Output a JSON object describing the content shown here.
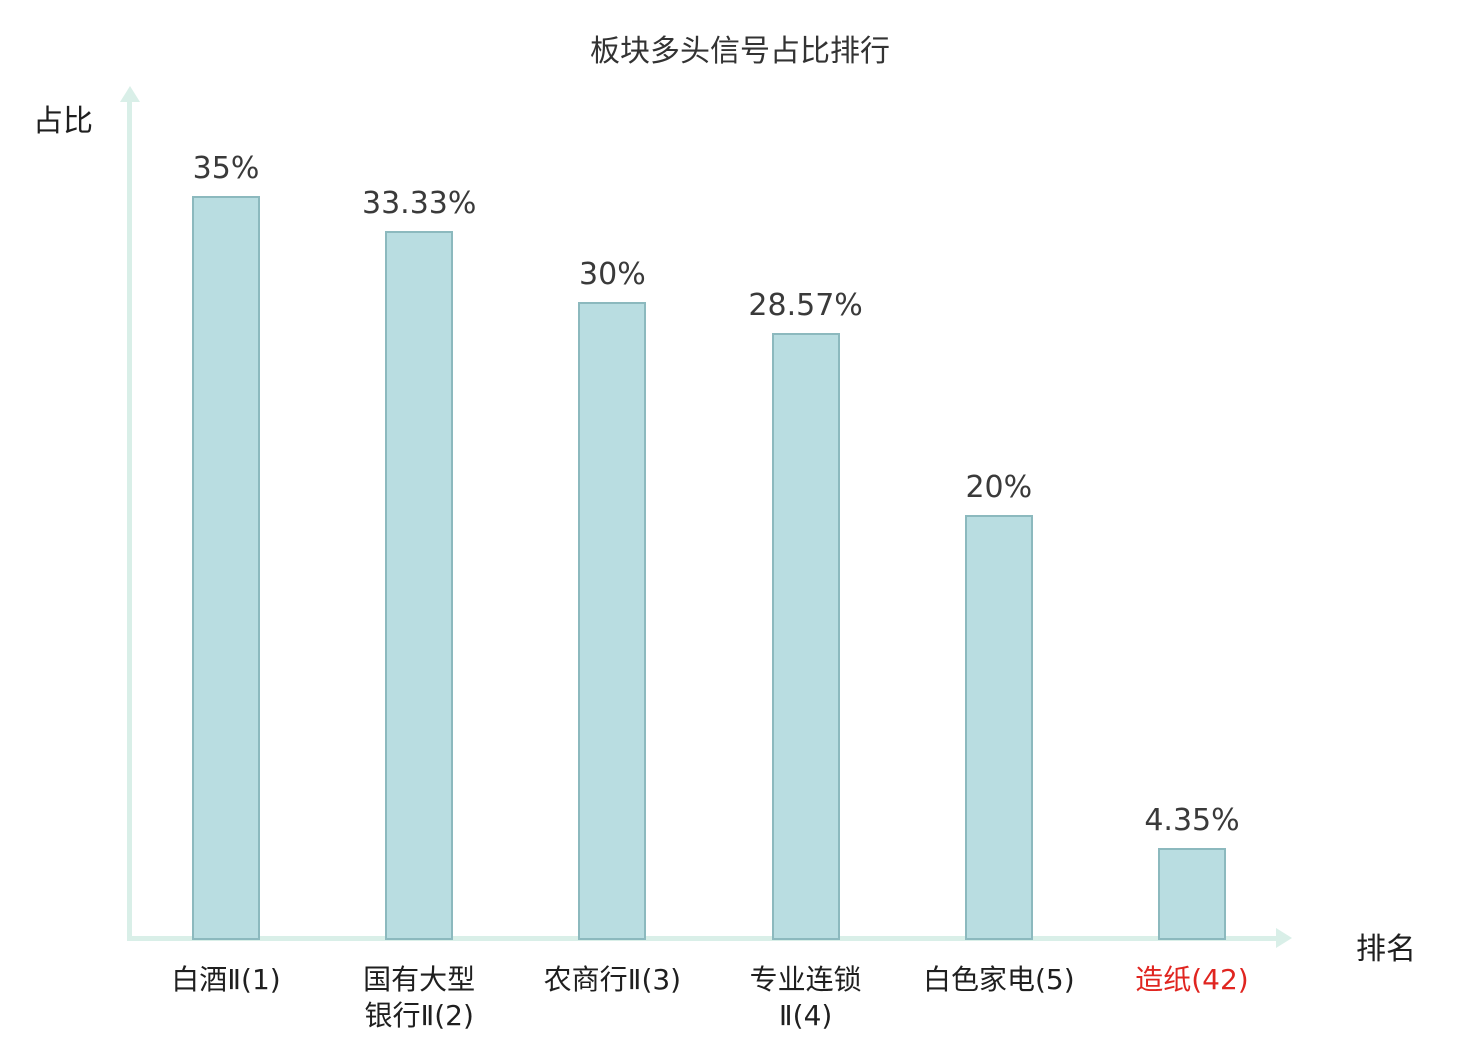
{
  "chart_data": {
    "type": "bar",
    "title": "板块多头信号占比排行",
    "ylabel": "占比",
    "xlabel": "排名",
    "ylim": [
      0,
      40
    ],
    "grid": false,
    "legend": null,
    "bar_color": "#b9dde1",
    "bar_border_color": "#8cb9be",
    "axis_color": "#d9efe8",
    "value_label_color": "#3a3a3a",
    "category_label_color": "#1f1f1f",
    "highlight_label_color": "#e02520",
    "categories": [
      "白酒Ⅱ(1)",
      "国有大型\n银行Ⅱ(2)",
      "农商行Ⅱ(3)",
      "专业连锁\nⅡ(4)",
      "白色家电(5)",
      "造纸(42)"
    ],
    "values": [
      35,
      33.33,
      30,
      28.57,
      20,
      4.35
    ],
    "items": [
      {
        "category": "白酒Ⅱ(1)",
        "value": 35,
        "value_label": "35%",
        "highlight": false
      },
      {
        "category": "国有大型\n银行Ⅱ(2)",
        "value": 33.33,
        "value_label": "33.33%",
        "highlight": false
      },
      {
        "category": "农商行Ⅱ(3)",
        "value": 30,
        "value_label": "30%",
        "highlight": false
      },
      {
        "category": "专业连锁\nⅡ(4)",
        "value": 28.57,
        "value_label": "28.57%",
        "highlight": false
      },
      {
        "category": "白色家电(5)",
        "value": 20,
        "value_label": "20%",
        "highlight": false
      },
      {
        "category": "造纸(42)",
        "value": 4.35,
        "value_label": "4.35%",
        "highlight": true
      }
    ]
  }
}
